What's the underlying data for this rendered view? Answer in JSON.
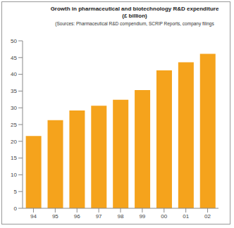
{
  "chart_data": {
    "type": "bar",
    "title": "Growth in pharmaceutical and biotechnology R&D expenditure\n(£ billion)",
    "subtitle": "(Sources: Pharmaceutical R&D compendium, SCRIP Reports, company filings",
    "categories": [
      "94",
      "95",
      "96",
      "97",
      "98",
      "99",
      "00",
      "01",
      "02"
    ],
    "values": [
      21.6,
      26.3,
      29.2,
      30.6,
      32.4,
      35.3,
      41.2,
      43.6,
      46.1
    ],
    "color": "#f5a31c",
    "ylim": [
      0,
      50
    ],
    "yticks": [
      0,
      5,
      10,
      15,
      20,
      25,
      30,
      35,
      40,
      45,
      50
    ],
    "grid": false
  }
}
